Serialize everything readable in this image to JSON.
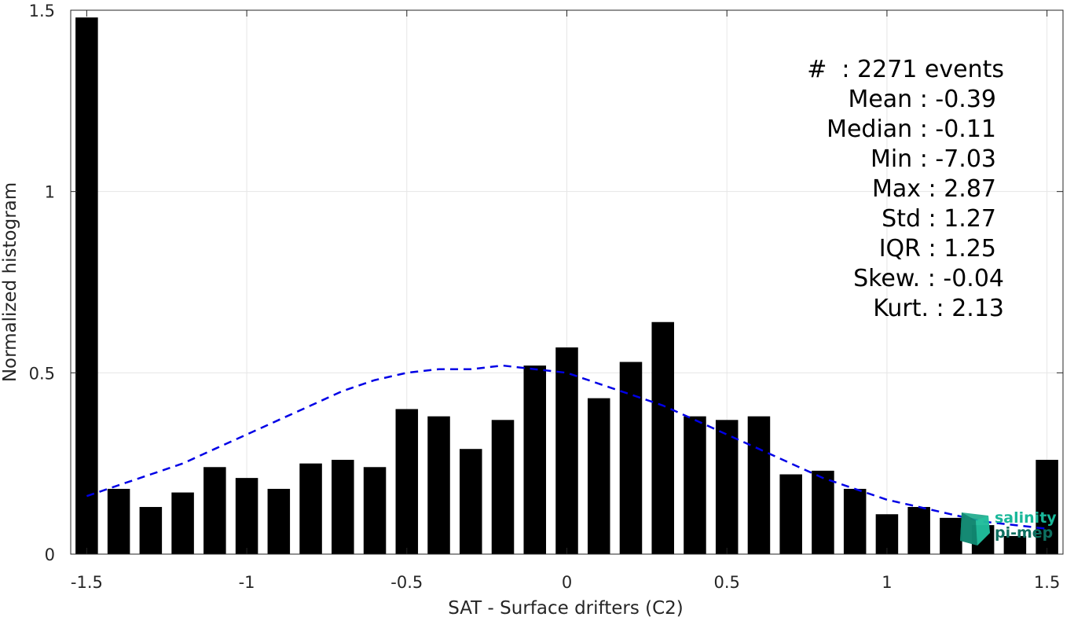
{
  "chart_data": {
    "type": "bar",
    "xlabel": "SAT - Surface drifters (C2)",
    "ylabel": "Normalized histogram",
    "xlim": [
      -1.55,
      1.55
    ],
    "ylim": [
      0,
      1.5
    ],
    "xticks": [
      -1.5,
      -1,
      -0.5,
      0,
      0.5,
      1,
      1.5
    ],
    "xtick_labels": [
      "-1.5",
      "-1",
      "-0.5",
      "0",
      "0.5",
      "1",
      "1.5"
    ],
    "yticks": [
      0,
      0.5,
      1,
      1.5
    ],
    "ytick_labels": [
      "0",
      "0.5",
      "1",
      "1.5"
    ],
    "grid": true,
    "bar_color": "#000000",
    "bars": {
      "x": [
        -1.5,
        -1.4,
        -1.3,
        -1.2,
        -1.1,
        -1.0,
        -0.9,
        -0.8,
        -0.7,
        -0.6,
        -0.5,
        -0.4,
        -0.3,
        -0.2,
        -0.1,
        0.0,
        0.1,
        0.2,
        0.3,
        0.4,
        0.5,
        0.6,
        0.7,
        0.8,
        0.9,
        1.0,
        1.1,
        1.2,
        1.3,
        1.4,
        1.5
      ],
      "values": [
        1.48,
        0.18,
        0.13,
        0.17,
        0.24,
        0.21,
        0.18,
        0.25,
        0.26,
        0.24,
        0.4,
        0.38,
        0.29,
        0.37,
        0.52,
        0.57,
        0.43,
        0.53,
        0.64,
        0.38,
        0.37,
        0.38,
        0.22,
        0.23,
        0.18,
        0.11,
        0.13,
        0.1,
        0.08,
        0.05,
        0.26
      ],
      "width": 0.07
    },
    "fit_curve": {
      "style": "dashed",
      "color": "#0000e6",
      "x": [
        -1.5,
        -1.4,
        -1.3,
        -1.2,
        -1.1,
        -1.0,
        -0.9,
        -0.8,
        -0.7,
        -0.6,
        -0.5,
        -0.4,
        -0.3,
        -0.2,
        -0.1,
        0.0,
        0.1,
        0.2,
        0.3,
        0.4,
        0.5,
        0.6,
        0.7,
        0.8,
        0.9,
        1.0,
        1.1,
        1.2,
        1.3,
        1.4,
        1.5
      ],
      "y": [
        0.16,
        0.19,
        0.22,
        0.25,
        0.29,
        0.33,
        0.37,
        0.41,
        0.45,
        0.48,
        0.5,
        0.51,
        0.51,
        0.52,
        0.51,
        0.5,
        0.47,
        0.44,
        0.41,
        0.37,
        0.33,
        0.29,
        0.25,
        0.21,
        0.18,
        0.15,
        0.13,
        0.11,
        0.09,
        0.08,
        0.07
      ]
    }
  },
  "stats": {
    "count": "#  : 2271 events",
    "mean": "Mean : -0.39",
    "median": "Median : -0.11",
    "min": "Min : -7.03",
    "max": "Max : 2.87",
    "std": "Std : 1.27",
    "iqr": "IQR : 1.25",
    "skew": "Skew. : -0.04",
    "kurt": "Kurt. : 2.13"
  },
  "logo": {
    "line1": "salinity",
    "line2": "pi-mep",
    "color": "#19b89a"
  }
}
